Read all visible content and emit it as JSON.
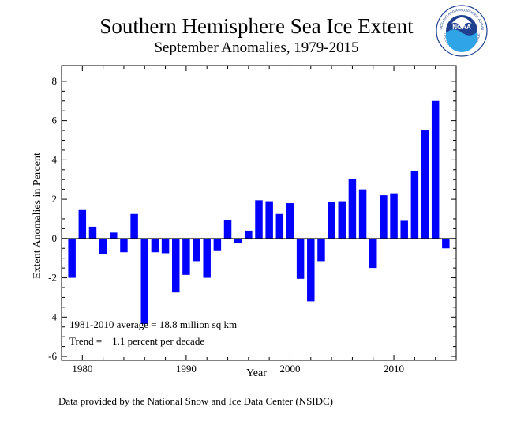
{
  "chart_data": {
    "type": "bar",
    "title": "Southern Hemisphere Sea Ice Extent",
    "subtitle": "September Anomalies, 1979-2015",
    "xlabel": "Year",
    "ylabel": "Extent Anomalies in Percent",
    "xlim": [
      1978,
      2016
    ],
    "ylim": [
      -6.2,
      8.8
    ],
    "xticks": [
      1980,
      1990,
      2000,
      2010
    ],
    "yticks": [
      -6,
      -4,
      -2,
      0,
      2,
      4,
      6,
      8
    ],
    "bar_color": "#0000ff",
    "x": [
      1979,
      1980,
      1981,
      1982,
      1983,
      1984,
      1985,
      1986,
      1987,
      1988,
      1989,
      1990,
      1991,
      1992,
      1993,
      1994,
      1995,
      1996,
      1997,
      1998,
      1999,
      2000,
      2001,
      2002,
      2003,
      2004,
      2005,
      2006,
      2007,
      2008,
      2009,
      2010,
      2011,
      2012,
      2013,
      2014,
      2015
    ],
    "values": [
      -2.0,
      1.45,
      0.6,
      -0.8,
      0.3,
      -0.7,
      1.25,
      -4.35,
      -0.7,
      -0.75,
      -2.75,
      -1.85,
      -1.15,
      -2.0,
      -0.6,
      0.95,
      -0.25,
      0.4,
      1.95,
      1.9,
      1.25,
      1.8,
      -2.05,
      -3.2,
      -1.15,
      1.85,
      1.9,
      3.05,
      2.5,
      -1.5,
      2.2,
      2.3,
      0.9,
      3.45,
      5.5,
      7.0,
      -0.5
    ],
    "annotations": [
      "1981-2010 average = 18.8 million sq km",
      "Trend =    1.1 percent per decade"
    ]
  },
  "footer": "Data provided by the National Snow and Ice Data Center (NSIDC)",
  "logo": {
    "text": "NOAA",
    "ring_top": "NATIONAL OCEANIC AND ATMOSPHERIC ADMINISTRATION",
    "ring_bottom": "U.S. DEPARTMENT OF COMMERCE",
    "colors": {
      "dark_blue": "#1f3f8f",
      "light_blue": "#2fa4e7"
    }
  }
}
